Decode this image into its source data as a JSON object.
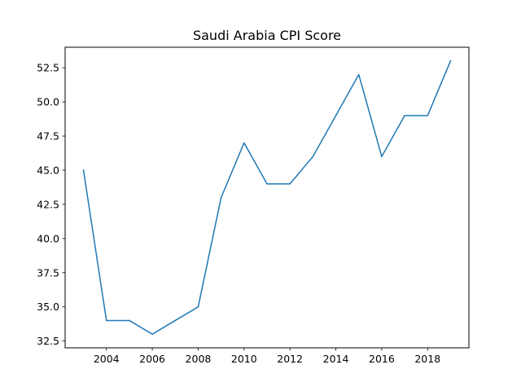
{
  "chart_data": {
    "type": "line",
    "title": "Saudi Arabia CPI Score",
    "xlabel": "",
    "ylabel": "",
    "x": [
      2003,
      2004,
      2005,
      2006,
      2007,
      2008,
      2009,
      2010,
      2011,
      2012,
      2013,
      2014,
      2015,
      2016,
      2017,
      2018,
      2019
    ],
    "series": [
      {
        "values": [
          45,
          34,
          34,
          33,
          34,
          35,
          43,
          47,
          44,
          44,
          46,
          49,
          52,
          46,
          49,
          49,
          53
        ]
      }
    ],
    "xlim": [
      2002.2,
      2019.8
    ],
    "ylim": [
      32.0,
      54.0
    ],
    "xticks": [
      2004,
      2006,
      2008,
      2010,
      2012,
      2014,
      2016,
      2018
    ],
    "yticks": [
      32.5,
      35.0,
      37.5,
      40.0,
      42.5,
      45.0,
      47.5,
      50.0,
      52.5
    ],
    "ytick_labels": [
      "32.5",
      "35.0",
      "37.5",
      "40.0",
      "42.5",
      "45.0",
      "47.5",
      "50.0",
      "52.5"
    ],
    "xtick_labels": [
      "2004",
      "2006",
      "2008",
      "2010",
      "2012",
      "2014",
      "2016",
      "2018"
    ],
    "line_color": "#1f77b4",
    "grid": false,
    "legend": "none"
  }
}
